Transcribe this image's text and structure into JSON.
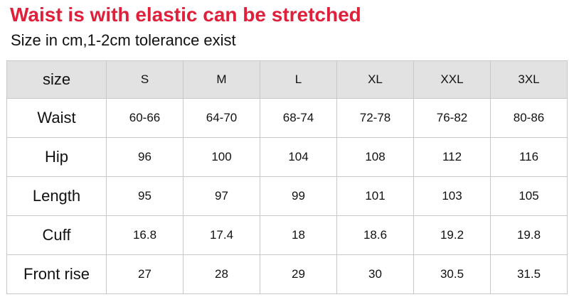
{
  "header": {
    "title": "Waist is with elastic can be stretched",
    "subtitle": "Size in cm,1-2cm tolerance exist"
  },
  "table": {
    "columns": [
      "size",
      "S",
      "M",
      "L",
      "XL",
      "XXL",
      "3XL"
    ],
    "rows": [
      [
        "Waist",
        "60-66",
        "64-70",
        "68-74",
        "72-78",
        "76-82",
        "80-86"
      ],
      [
        "Hip",
        "96",
        "100",
        "104",
        "108",
        "112",
        "116"
      ],
      [
        "Length",
        "95",
        "97",
        "99",
        "101",
        "103",
        "105"
      ],
      [
        "Cuff",
        "16.8",
        "17.4",
        "18",
        "18.6",
        "19.2",
        "19.8"
      ],
      [
        "Front rise",
        "27",
        "28",
        "29",
        "30",
        "30.5",
        "31.5"
      ]
    ]
  }
}
